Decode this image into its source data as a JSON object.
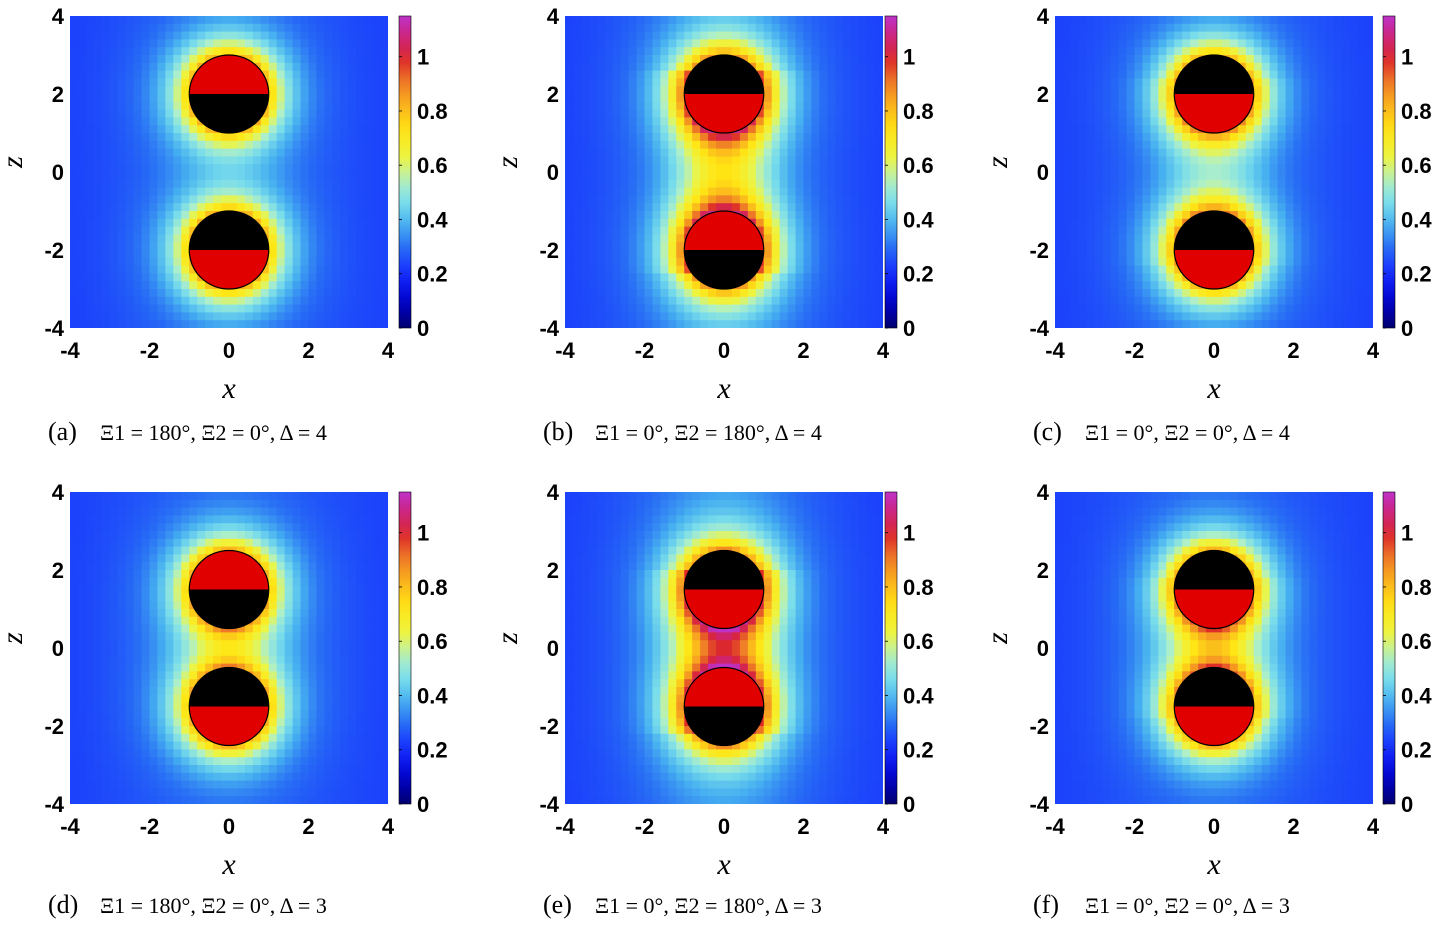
{
  "chart_data": [
    {
      "type": "heatmap",
      "label": "(a)",
      "caption": "Ξ1 = 180°, Ξ2 = 0°, Δ = 4",
      "xi1": 180,
      "xi2": 0,
      "delta": 4,
      "xlabel": "x",
      "ylabel": "z",
      "xlim": [
        -4,
        4
      ],
      "ylim": [
        -4,
        4
      ],
      "xticks": [
        "-4",
        "-2",
        "0",
        "2",
        "4"
      ],
      "yticks": [
        "-4",
        "-2",
        "0",
        "2",
        "4"
      ],
      "colorbar": {
        "range": [
          0,
          1.15
        ],
        "ticks": [
          "0",
          "0.2",
          "0.4",
          "0.6",
          "0.8",
          "1"
        ]
      },
      "particles": [
        {
          "center": [
            0,
            2
          ],
          "radius": 1,
          "red_half": "top"
        },
        {
          "center": [
            0,
            -2
          ],
          "radius": 1,
          "red_half": "bottom"
        }
      ]
    },
    {
      "type": "heatmap",
      "label": "(b)",
      "caption": "Ξ1 = 0°, Ξ2 = 180°, Δ = 4",
      "xi1": 0,
      "xi2": 180,
      "delta": 4,
      "xlabel": "x",
      "ylabel": "z",
      "xlim": [
        -4,
        4
      ],
      "ylim": [
        -4,
        4
      ],
      "xticks": [
        "-4",
        "-2",
        "0",
        "2",
        "4"
      ],
      "yticks": [
        "-4",
        "-2",
        "0",
        "2",
        "4"
      ],
      "colorbar": {
        "range": [
          0,
          1.15
        ],
        "ticks": [
          "0",
          "0.2",
          "0.4",
          "0.6",
          "0.8",
          "1"
        ]
      },
      "particles": [
        {
          "center": [
            0,
            2
          ],
          "radius": 1,
          "red_half": "bottom"
        },
        {
          "center": [
            0,
            -2
          ],
          "radius": 1,
          "red_half": "top"
        }
      ]
    },
    {
      "type": "heatmap",
      "label": "(c)",
      "caption": "Ξ1 = 0°, Ξ2 = 0°, Δ = 4",
      "xi1": 0,
      "xi2": 0,
      "delta": 4,
      "xlabel": "x",
      "ylabel": "z",
      "xlim": [
        -4,
        4
      ],
      "ylim": [
        -4,
        4
      ],
      "xticks": [
        "-4",
        "-2",
        "0",
        "2",
        "4"
      ],
      "yticks": [
        "-4",
        "-2",
        "0",
        "2",
        "4"
      ],
      "colorbar": {
        "range": [
          0,
          1.15
        ],
        "ticks": [
          "0",
          "0.2",
          "0.4",
          "0.6",
          "0.8",
          "1"
        ]
      },
      "particles": [
        {
          "center": [
            0,
            2
          ],
          "radius": 1,
          "red_half": "bottom"
        },
        {
          "center": [
            0,
            -2
          ],
          "radius": 1,
          "red_half": "bottom"
        }
      ]
    },
    {
      "type": "heatmap",
      "label": "(d)",
      "caption": "Ξ1 = 180°, Ξ2 = 0°, Δ = 3",
      "xi1": 180,
      "xi2": 0,
      "delta": 3,
      "xlabel": "x",
      "ylabel": "z",
      "xlim": [
        -4,
        4
      ],
      "ylim": [
        -4,
        4
      ],
      "xticks": [
        "-4",
        "-2",
        "0",
        "2",
        "4"
      ],
      "yticks": [
        "-4",
        "-2",
        "0",
        "2",
        "4"
      ],
      "colorbar": {
        "range": [
          0,
          1.15
        ],
        "ticks": [
          "0",
          "0.2",
          "0.4",
          "0.6",
          "0.8",
          "1"
        ]
      },
      "particles": [
        {
          "center": [
            0,
            1.5
          ],
          "radius": 1,
          "red_half": "top"
        },
        {
          "center": [
            0,
            -1.5
          ],
          "radius": 1,
          "red_half": "bottom"
        }
      ]
    },
    {
      "type": "heatmap",
      "label": "(e)",
      "caption": "Ξ1 = 0°, Ξ2 = 180°, Δ = 3",
      "xi1": 0,
      "xi2": 180,
      "delta": 3,
      "xlabel": "x",
      "ylabel": "z",
      "xlim": [
        -4,
        4
      ],
      "ylim": [
        -4,
        4
      ],
      "xticks": [
        "-4",
        "-2",
        "0",
        "2",
        "4"
      ],
      "yticks": [
        "-4",
        "-2",
        "0",
        "2",
        "4"
      ],
      "colorbar": {
        "range": [
          0,
          1.15
        ],
        "ticks": [
          "0",
          "0.2",
          "0.4",
          "0.6",
          "0.8",
          "1"
        ]
      },
      "particles": [
        {
          "center": [
            0,
            1.5
          ],
          "radius": 1,
          "red_half": "bottom"
        },
        {
          "center": [
            0,
            -1.5
          ],
          "radius": 1,
          "red_half": "top"
        }
      ]
    },
    {
      "type": "heatmap",
      "label": "(f)",
      "caption": "Ξ1 = 0°, Ξ2 = 0°, Δ = 3",
      "xi1": 0,
      "xi2": 0,
      "delta": 3,
      "xlabel": "x",
      "ylabel": "z",
      "xlim": [
        -4,
        4
      ],
      "ylim": [
        -4,
        4
      ],
      "xticks": [
        "-4",
        "-2",
        "0",
        "2",
        "4"
      ],
      "yticks": [
        "-4",
        "-2",
        "0",
        "2",
        "4"
      ],
      "colorbar": {
        "range": [
          0,
          1.15
        ],
        "ticks": [
          "0",
          "0.2",
          "0.4",
          "0.6",
          "0.8",
          "1"
        ]
      },
      "particles": [
        {
          "center": [
            0,
            1.5
          ],
          "radius": 1,
          "red_half": "bottom"
        },
        {
          "center": [
            0,
            -1.5
          ],
          "radius": 1,
          "red_half": "bottom"
        }
      ]
    }
  ]
}
